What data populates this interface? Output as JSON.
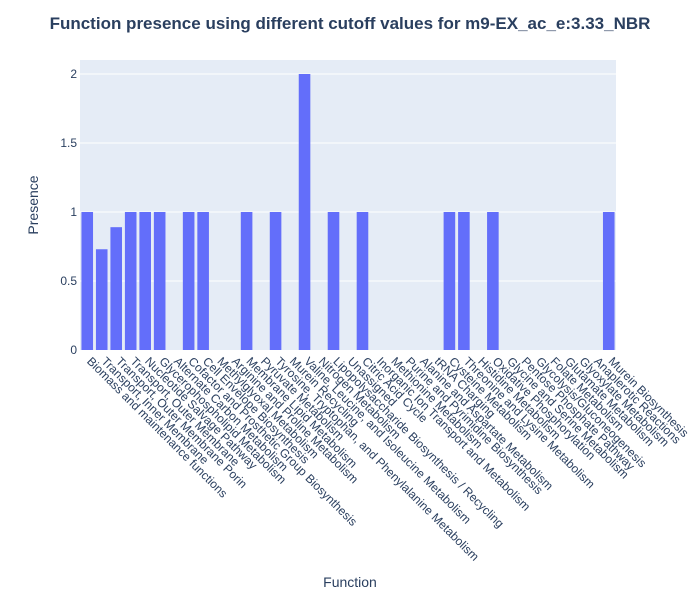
{
  "chart_data": {
    "type": "bar",
    "title": "Function presence using different cutoff values for m9-EX_ac_e:3.33_NBR",
    "xlabel": "Function",
    "ylabel": "Presence",
    "ylim": [
      0,
      2.1
    ],
    "yticks": [
      "0",
      "0.5",
      "1",
      "1.5",
      "2"
    ],
    "grid": true,
    "bar_color": "#636efa",
    "plot_bg": "#e5ecf6",
    "categories": [
      "Biomass and maintenance functions",
      "Transport, Inner Membrane",
      "Transport, Outer Membrane Porin",
      "Transport, Outer Membrane",
      "Nucleotide Salvage Pathway",
      "Glycerophospholipid Metabolism",
      "Alternate Carbon Metabolism",
      "Cofactor and Prosthetic Group Biosynthesis",
      "Cell Envelope Biosynthesis",
      "Methylglyoxal Metabolism",
      "Arginine and Proline Metabolism",
      "Membrane Lipid Metabolism",
      "Pyruvate Metabolism",
      "Tyrosine, Tryptophan, and Phenylalanine Metabolism",
      "Murein Recycling",
      "Valine, Leucine, and Isoleucine Metabolism",
      "Nitrogen Metabolism",
      "Lipopolysaccharide Biosynthesis / Recycling",
      "Unassigned",
      "Citric Acid Cycle",
      "Inorganic Ion Transport and Metabolism",
      "Methionine Metabolism",
      "Purine and Pyrimidine Biosynthesis",
      "Alanine and Aspartate Metabolism",
      "tRNA Charging",
      "Cysteine Metabolism",
      "Threonine and Lysine Metabolism",
      "Histidine Metabolism",
      "Oxidative Phosphorylation",
      "Glycine and Serine Metabolism",
      "Pentose Phosphate Pathway",
      "Glycolysis/Gluconeogenesis",
      "Folate Metabolism",
      "Glutamate Metabolism",
      "Glyoxylate Metabolism",
      "Anaplerotic Reactions",
      "Murein Biosynthesis"
    ],
    "values": [
      1,
      0.73,
      0.89,
      1,
      1,
      1,
      0,
      1,
      1,
      0,
      0,
      1,
      0,
      1,
      0,
      2,
      0,
      1,
      0,
      1,
      0,
      0,
      0,
      0,
      0,
      1,
      1,
      0,
      1,
      0,
      0,
      0,
      0,
      0,
      0,
      0,
      1
    ]
  }
}
